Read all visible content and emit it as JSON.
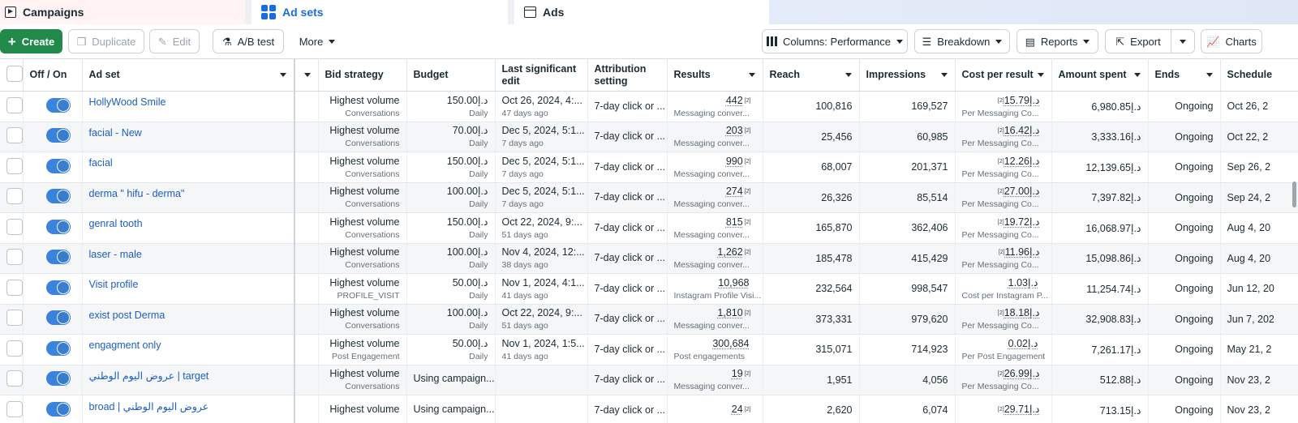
{
  "tabs": {
    "campaigns": "Campaigns",
    "adsets": "Ad sets",
    "ads": "Ads"
  },
  "toolbar": {
    "create": "Create",
    "duplicate": "Duplicate",
    "edit": "Edit",
    "ab_test": "A/B test",
    "more": "More",
    "columns": "Columns: Performance",
    "breakdown": "Breakdown",
    "reports": "Reports",
    "export": "Export",
    "charts": "Charts"
  },
  "headers": {
    "onoff": "Off / On",
    "adset": "Ad set",
    "bid": "Bid strategy",
    "budget": "Budget",
    "last_edit": "Last significant edit",
    "attribution": "Attribution setting",
    "results": "Results",
    "reach": "Reach",
    "impressions": "Impressions",
    "cpr": "Cost per result",
    "spent": "Amount spent",
    "ends": "Ends",
    "schedule": "Schedule"
  },
  "rows": [
    {
      "name": "HollyWood Smile",
      "bid": "Highest volume",
      "bid_sub": "Conversations",
      "budget": "د.إ150.00",
      "budget_sub": "Daily",
      "edit": "Oct 26, 2024, 4:...",
      "edit_sub": "47 days ago",
      "attr": "7-day click or ...",
      "results": "442",
      "results_fn": "[2]",
      "results_sub": "Messaging conver...",
      "reach": "100,816",
      "impr": "169,527",
      "cpr": "د.إ15.79",
      "cpr_fn": "[2]",
      "cpr_sub": "Per Messaging Co...",
      "spent": "د.إ6,980.85",
      "ends": "Ongoing",
      "sched": "Oct 26, 2"
    },
    {
      "name": "facial - New",
      "bid": "Highest volume",
      "bid_sub": "Conversations",
      "budget": "د.إ70.00",
      "budget_sub": "Daily",
      "edit": "Dec 5, 2024, 5:1...",
      "edit_sub": "7 days ago",
      "attr": "7-day click or ...",
      "results": "203",
      "results_fn": "[2]",
      "results_sub": "Messaging conver...",
      "reach": "25,456",
      "impr": "60,985",
      "cpr": "د.إ16.42",
      "cpr_fn": "[2]",
      "cpr_sub": "Per Messaging Co...",
      "spent": "د.إ3,333.16",
      "ends": "Ongoing",
      "sched": "Oct 22, 2"
    },
    {
      "name": "facial",
      "bid": "Highest volume",
      "bid_sub": "Conversations",
      "budget": "د.إ150.00",
      "budget_sub": "Daily",
      "edit": "Dec 5, 2024, 5:1...",
      "edit_sub": "7 days ago",
      "attr": "7-day click or ...",
      "results": "990",
      "results_fn": "[2]",
      "results_sub": "Messaging conver...",
      "reach": "68,007",
      "impr": "201,371",
      "cpr": "د.إ12.26",
      "cpr_fn": "[2]",
      "cpr_sub": "Per Messaging Co...",
      "spent": "د.إ12,139.65",
      "ends": "Ongoing",
      "sched": "Sep 26, 2"
    },
    {
      "name": "derma \" hifu - derma\"",
      "bid": "Highest volume",
      "bid_sub": "Conversations",
      "budget": "د.إ100.00",
      "budget_sub": "Daily",
      "edit": "Dec 5, 2024, 5:1...",
      "edit_sub": "7 days ago",
      "attr": "7-day click or ...",
      "results": "274",
      "results_fn": "[2]",
      "results_sub": "Messaging conver...",
      "reach": "26,326",
      "impr": "85,514",
      "cpr": "د.إ27.00",
      "cpr_fn": "[2]",
      "cpr_sub": "Per Messaging Co...",
      "spent": "د.إ7,397.82",
      "ends": "Ongoing",
      "sched": "Sep 24, 2"
    },
    {
      "name": "genral tooth",
      "bid": "Highest volume",
      "bid_sub": "Conversations",
      "budget": "د.إ150.00",
      "budget_sub": "Daily",
      "edit": "Oct 22, 2024, 9:...",
      "edit_sub": "51 days ago",
      "attr": "7-day click or ...",
      "results": "815",
      "results_fn": "[2]",
      "results_sub": "Messaging conver...",
      "reach": "165,870",
      "impr": "362,406",
      "cpr": "د.إ19.72",
      "cpr_fn": "[2]",
      "cpr_sub": "Per Messaging Co...",
      "spent": "د.إ16,068.97",
      "ends": "Ongoing",
      "sched": "Aug 4, 20"
    },
    {
      "name": "laser - male",
      "bid": "Highest volume",
      "bid_sub": "Conversations",
      "budget": "د.إ100.00",
      "budget_sub": "Daily",
      "edit": "Nov 4, 2024, 12:...",
      "edit_sub": "38 days ago",
      "attr": "7-day click or ...",
      "results": "1,262",
      "results_fn": "[2]",
      "results_sub": "Messaging conver...",
      "reach": "185,478",
      "impr": "415,429",
      "cpr": "د.إ11.96",
      "cpr_fn": "[2]",
      "cpr_sub": "Per Messaging Co...",
      "spent": "د.إ15,098.86",
      "ends": "Ongoing",
      "sched": "Aug 4, 20"
    },
    {
      "name": "Visit profile",
      "bid": "Highest volume",
      "bid_sub": "PROFILE_VISIT",
      "budget": "د.إ50.00",
      "budget_sub": "Daily",
      "edit": "Nov 1, 2024, 4:1...",
      "edit_sub": "41 days ago",
      "attr": "7-day click or ...",
      "results": "10,968",
      "results_fn": "",
      "results_sub": "Instagram Profile Visi...",
      "reach": "232,564",
      "impr": "998,547",
      "cpr": "د.إ1.03",
      "cpr_fn": "",
      "cpr_sub": "Cost per Instagram P...",
      "spent": "د.إ11,254.74",
      "ends": "Ongoing",
      "sched": "Jun 12, 20"
    },
    {
      "name": "exist post Derma",
      "bid": "Highest volume",
      "bid_sub": "Conversations",
      "budget": "د.إ100.00",
      "budget_sub": "Daily",
      "edit": "Oct 22, 2024, 9:...",
      "edit_sub": "51 days ago",
      "attr": "7-day click or ...",
      "results": "1,810",
      "results_fn": "[2]",
      "results_sub": "Messaging conver...",
      "reach": "373,331",
      "impr": "979,620",
      "cpr": "د.إ18.18",
      "cpr_fn": "[2]",
      "cpr_sub": "Per Messaging Co...",
      "spent": "د.إ32,908.83",
      "ends": "Ongoing",
      "sched": "Jun 7, 202"
    },
    {
      "name": "engagment only",
      "bid": "Highest volume",
      "bid_sub": "Post Engagement",
      "budget": "د.إ50.00",
      "budget_sub": "Daily",
      "edit": "Nov 1, 2024, 1:5...",
      "edit_sub": "41 days ago",
      "attr": "7-day click or ...",
      "results": "300,684",
      "results_fn": "",
      "results_sub": "Post engagements",
      "reach": "315,071",
      "impr": "714,923",
      "cpr": "د.إ0.02",
      "cpr_fn": "",
      "cpr_sub": "Per Post Engagement",
      "spent": "د.إ7,261.17",
      "ends": "Ongoing",
      "sched": "May 21, 2"
    },
    {
      "name": "عروض اليوم الوطني | target",
      "bid": "Highest volume",
      "bid_sub": "Conversations",
      "budget": "Using campaign...",
      "budget_sub": "",
      "edit": "",
      "edit_sub": "",
      "attr": "7-day click or ...",
      "results": "19",
      "results_fn": "[2]",
      "results_sub": "Messaging conver...",
      "reach": "1,951",
      "impr": "4,056",
      "cpr": "د.إ26.99",
      "cpr_fn": "[2]",
      "cpr_sub": "Per Messaging Co...",
      "spent": "د.إ512.88",
      "ends": "Ongoing",
      "sched": "Nov 23, 2"
    },
    {
      "name": "broad | عروض اليوم الوطني",
      "bid": "Highest volume",
      "bid_sub": "",
      "budget": "Using campaign...",
      "budget_sub": "",
      "edit": "",
      "edit_sub": "",
      "attr": "7-day click or ...",
      "results": "24",
      "results_fn": "[2]",
      "results_sub": "",
      "reach": "2,620",
      "impr": "6,074",
      "cpr": "د.إ29.71",
      "cpr_fn": "[2]",
      "cpr_sub": "",
      "spent": "د.إ713.15",
      "ends": "Ongoing",
      "sched": "Nov 23, 2"
    }
  ]
}
